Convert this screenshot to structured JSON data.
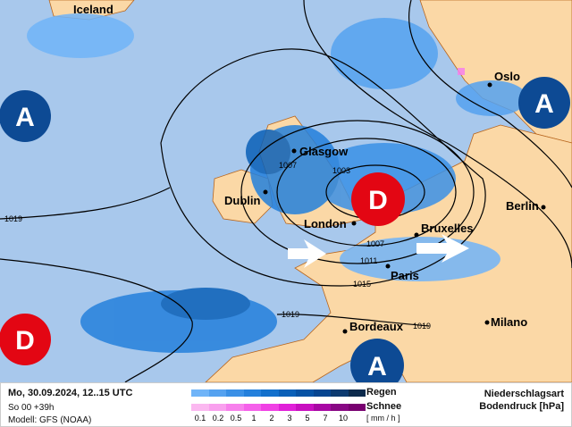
{
  "map": {
    "cities": [
      "Iceland",
      "Oslo",
      "Glasgow",
      "Dublin",
      "London",
      "Berlin",
      "Bruxelles",
      "Paris",
      "Bordeaux",
      "Milano"
    ],
    "isobars": [
      "1019",
      "1007",
      "1003",
      "1007",
      "1011",
      "1015",
      "1019",
      "1019"
    ],
    "systems": [
      {
        "label": "A",
        "type": "high"
      },
      {
        "label": "A",
        "type": "high"
      },
      {
        "label": "D",
        "type": "low"
      },
      {
        "label": "D",
        "type": "low"
      },
      {
        "label": "A",
        "type": "high"
      }
    ],
    "colors": {
      "sea": "#a8c8ec",
      "land": "#fbd8a6",
      "high": "#0d4a94",
      "low": "#e30613"
    }
  },
  "legend": {
    "datetime": "Mo, 30.09.2024, 12..15 UTC",
    "run": "So 00 +39h",
    "model": "Modell: GFS (NOAA)",
    "rain_label": "Regen",
    "snow_label": "Schnee",
    "unit": "[ mm / h ]",
    "title1": "Niederschlagsart",
    "title2": "Bodendruck [hPa]",
    "ticks": [
      "0.1",
      "0.2",
      "0.5",
      "1",
      "2",
      "3",
      "5",
      "7",
      "10"
    ],
    "rain_colors": [
      "#70b4f8",
      "#55a2f0",
      "#3a90e6",
      "#2480dc",
      "#1270cc",
      "#0a60b8",
      "#0652a4",
      "#064590",
      "#0c3a70",
      "#0c2a4c"
    ],
    "snow_colors": [
      "#fbb8f0",
      "#f9a0ee",
      "#f780ec",
      "#f560ea",
      "#f040e4",
      "#e020d8",
      "#c810c0",
      "#a808a4",
      "#880884",
      "#780070"
    ]
  }
}
